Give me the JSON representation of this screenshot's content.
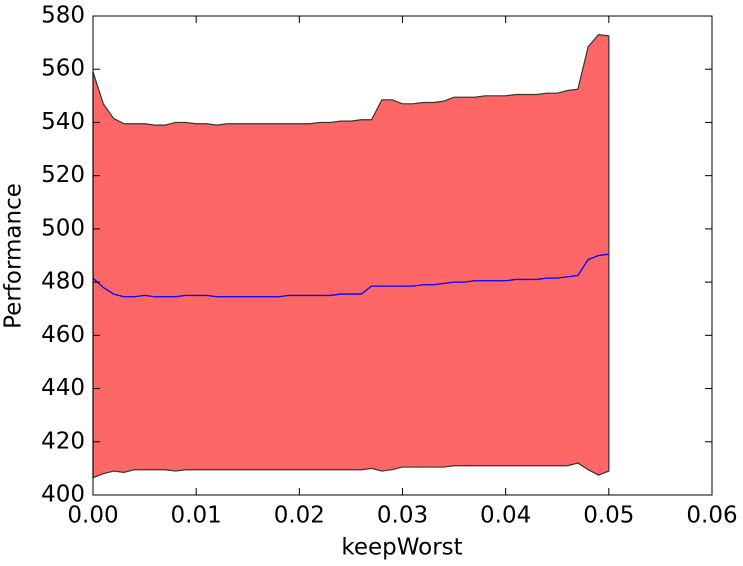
{
  "chart_data": {
    "type": "band-line",
    "x_label": "keepWorst",
    "y_label": "Performance",
    "x": [
      0,
      0.001,
      0.002,
      0.003,
      0.004,
      0.005,
      0.006,
      0.007,
      0.008,
      0.009,
      0.01,
      0.011,
      0.012,
      0.013,
      0.014,
      0.015,
      0.016,
      0.017,
      0.018,
      0.019,
      0.02,
      0.021,
      0.022,
      0.023,
      0.024,
      0.025,
      0.026,
      0.027,
      0.028,
      0.029,
      0.03,
      0.031,
      0.032,
      0.033,
      0.034,
      0.035,
      0.036,
      0.037,
      0.038,
      0.039,
      0.04,
      0.041,
      0.042,
      0.043,
      0.044,
      0.045,
      0.046,
      0.047,
      0.048,
      0.049,
      0.05
    ],
    "series": [
      {
        "color": "#0000ff",
        "values": [
          481.5,
          478,
          475.5,
          474.5,
          474.5,
          475,
          474.5,
          474.5,
          474.5,
          475,
          475,
          475,
          474.5,
          474.5,
          474.5,
          474.5,
          474.5,
          474.5,
          474.5,
          475,
          475,
          475,
          475,
          475,
          475.5,
          475.5,
          475.5,
          478.5,
          478.5,
          478.5,
          478.5,
          478.5,
          479,
          479,
          479.5,
          480,
          480,
          480.5,
          480.5,
          480.5,
          480.5,
          481,
          481,
          481,
          481.5,
          481.5,
          482,
          482.5,
          488.5,
          490,
          490.5
        ]
      }
    ],
    "band": {
      "color": "#ff6666",
      "edge_color": "#333333",
      "upper": [
        559,
        547,
        541.5,
        539.5,
        539.5,
        539.5,
        539,
        539,
        540,
        540,
        539.5,
        539.5,
        539,
        539.5,
        539.5,
        539.5,
        539.5,
        539.5,
        539.5,
        539.5,
        539.5,
        539.5,
        540,
        540,
        540.5,
        540.5,
        541,
        541,
        548.5,
        548.5,
        547,
        547,
        547.5,
        547.5,
        548,
        549.5,
        549.5,
        549.5,
        550,
        550,
        550,
        550.5,
        550.5,
        550.5,
        551,
        551,
        552,
        552.5,
        568.5,
        573,
        572.5
      ],
      "lower": [
        406.5,
        408,
        409,
        408.5,
        409.5,
        409.5,
        409.5,
        409.5,
        409,
        409.5,
        409.5,
        409.5,
        409.5,
        409.5,
        409.5,
        409.5,
        409.5,
        409.5,
        409.5,
        409.5,
        409.5,
        409.5,
        409.5,
        409.5,
        409.5,
        409.5,
        409.5,
        410,
        409,
        409.5,
        410.5,
        410.5,
        410.5,
        410.5,
        410.5,
        411,
        411,
        411,
        411,
        411,
        411,
        411,
        411,
        411,
        411,
        411,
        411,
        412,
        409.5,
        407.5,
        409
      ]
    },
    "xlim": [
      0,
      0.06
    ],
    "ylim": [
      400,
      580
    ],
    "xticks": [
      {
        "value": 0,
        "label": "0.00"
      },
      {
        "value": 0.01,
        "label": "0.01"
      },
      {
        "value": 0.02,
        "label": "0.02"
      },
      {
        "value": 0.03,
        "label": "0.03"
      },
      {
        "value": 0.04,
        "label": "0.04"
      },
      {
        "value": 0.05,
        "label": "0.05"
      },
      {
        "value": 0.06,
        "label": "0.06"
      }
    ],
    "yticks": [
      400,
      420,
      440,
      460,
      480,
      500,
      520,
      540,
      560,
      580
    ],
    "grid": false
  }
}
